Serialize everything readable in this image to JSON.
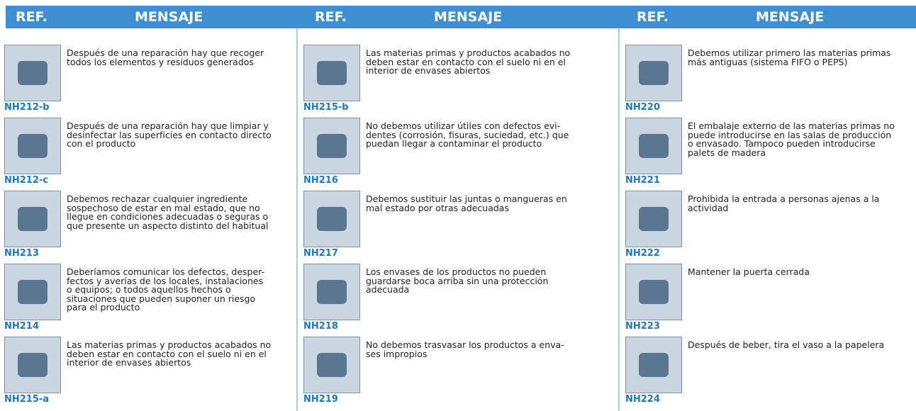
{
  "columns": [
    {
      "header_ref": "REF.",
      "header_msg": "MENSAJE",
      "rows": [
        {
          "ref": "NH212-b",
          "lines": [
            "Después de una reparación hay que recoger",
            "todos los elementos y residuos generados"
          ]
        },
        {
          "ref": "NH212-c",
          "lines": [
            "Después de una reparación hay que limpiar y",
            "desinfectar las superficies en contacto directo",
            "con el producto"
          ]
        },
        {
          "ref": "NH213",
          "lines": [
            "Debemos rechazar cualquier ingrediente",
            "sospechoso de estar en mal estado, que no",
            "llegue en condiciones adecuadas o seguras o",
            "que presente un aspecto distinto del habitual"
          ]
        },
        {
          "ref": "NH214",
          "lines": [
            "Deberíamos comunicar los defectos, desper-",
            "fectos y averías de los locales, instalaciones",
            "o equipos; o todos aquellos hechos o",
            "situaciones que pueden suponer un riesgo",
            "para el producto"
          ]
        },
        {
          "ref": "NH215-a",
          "lines": [
            "Las materias primas y productos acabados no",
            "deben estar en contacto con el suelo ni en el",
            "interior de envases abiertos"
          ]
        }
      ]
    },
    {
      "header_ref": "REF.",
      "header_msg": "MENSAJE",
      "rows": [
        {
          "ref": "NH215-b",
          "lines": [
            "Las materias primas y productos acabados no",
            "deben estar en contacto con el suelo ni en el",
            "interior de envases abiertos"
          ]
        },
        {
          "ref": "NH216",
          "lines": [
            "No debemos utilizar útiles con defectos evi-",
            "dentes (corrosión, fisuras, suciedad, etc.) que",
            "puedan llegar a contaminar el producto"
          ]
        },
        {
          "ref": "NH217",
          "lines": [
            "Debemos sustituir las juntas o mangueras en",
            "mal estado por otras adecuadas"
          ]
        },
        {
          "ref": "NH218",
          "lines": [
            "Los envases de los productos no pueden",
            "guardarse boca arriba sin una protección",
            "adecuada"
          ]
        },
        {
          "ref": "NH219",
          "lines": [
            "No debemos trasvasar los productos a enva-",
            "ses impropios"
          ]
        }
      ]
    },
    {
      "header_ref": "REF.",
      "header_msg": "MENSAJE",
      "rows": [
        {
          "ref": "NH220",
          "lines": [
            "Debemos utilizar primero las materias primas",
            "más antiguas (sistema FIFO o PEPS)"
          ]
        },
        {
          "ref": "NH221",
          "lines": [
            "El embalaje externo de las materias primas no",
            "puede introducirse en las salas de producción",
            "o envasado. Tampoco pueden introducirse",
            "palets de madera"
          ]
        },
        {
          "ref": "NH222",
          "lines": [
            "Prohibida la entrada a personas ajenas a la",
            "actividad"
          ]
        },
        {
          "ref": "NH223",
          "lines": [
            "Mantener la puerta cerrada"
          ]
        },
        {
          "ref": "NH224",
          "lines": [
            "Después de beber, tira el vaso a la papelera"
          ]
        }
      ]
    }
  ]
}
